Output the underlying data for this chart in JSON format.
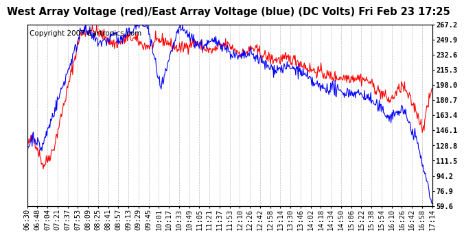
{
  "title": "West Array Voltage (red)/East Array Voltage (blue) (DC Volts) Fri Feb 23 17:25",
  "copyright": "Copyright 2007 Cartronics.com",
  "yticks": [
    59.6,
    76.9,
    94.2,
    111.5,
    128.8,
    146.1,
    163.4,
    180.7,
    198.0,
    215.3,
    232.6,
    249.9,
    267.2
  ],
  "xtick_labels": [
    "06:30",
    "06:48",
    "07:04",
    "07:21",
    "07:37",
    "07:53",
    "08:09",
    "08:25",
    "08:41",
    "08:57",
    "09:13",
    "09:29",
    "09:45",
    "10:01",
    "10:17",
    "10:33",
    "10:49",
    "11:05",
    "11:21",
    "11:37",
    "11:53",
    "12:10",
    "12:26",
    "12:42",
    "12:58",
    "13:14",
    "13:30",
    "13:46",
    "14:02",
    "14:18",
    "14:34",
    "14:50",
    "15:06",
    "15:22",
    "15:38",
    "15:54",
    "16:10",
    "16:26",
    "16:42",
    "16:58",
    "17:14"
  ],
  "red_color": "#ff0000",
  "blue_color": "#0000ff",
  "bg_color": "#ffffff",
  "plot_bg_color": "#ffffff",
  "grid_color": "#aaaaaa",
  "title_fontsize": 10.5,
  "copyright_fontsize": 7.5,
  "tick_fontsize": 7.5,
  "line_width": 0.8,
  "ymin": 59.6,
  "ymax": 267.2
}
